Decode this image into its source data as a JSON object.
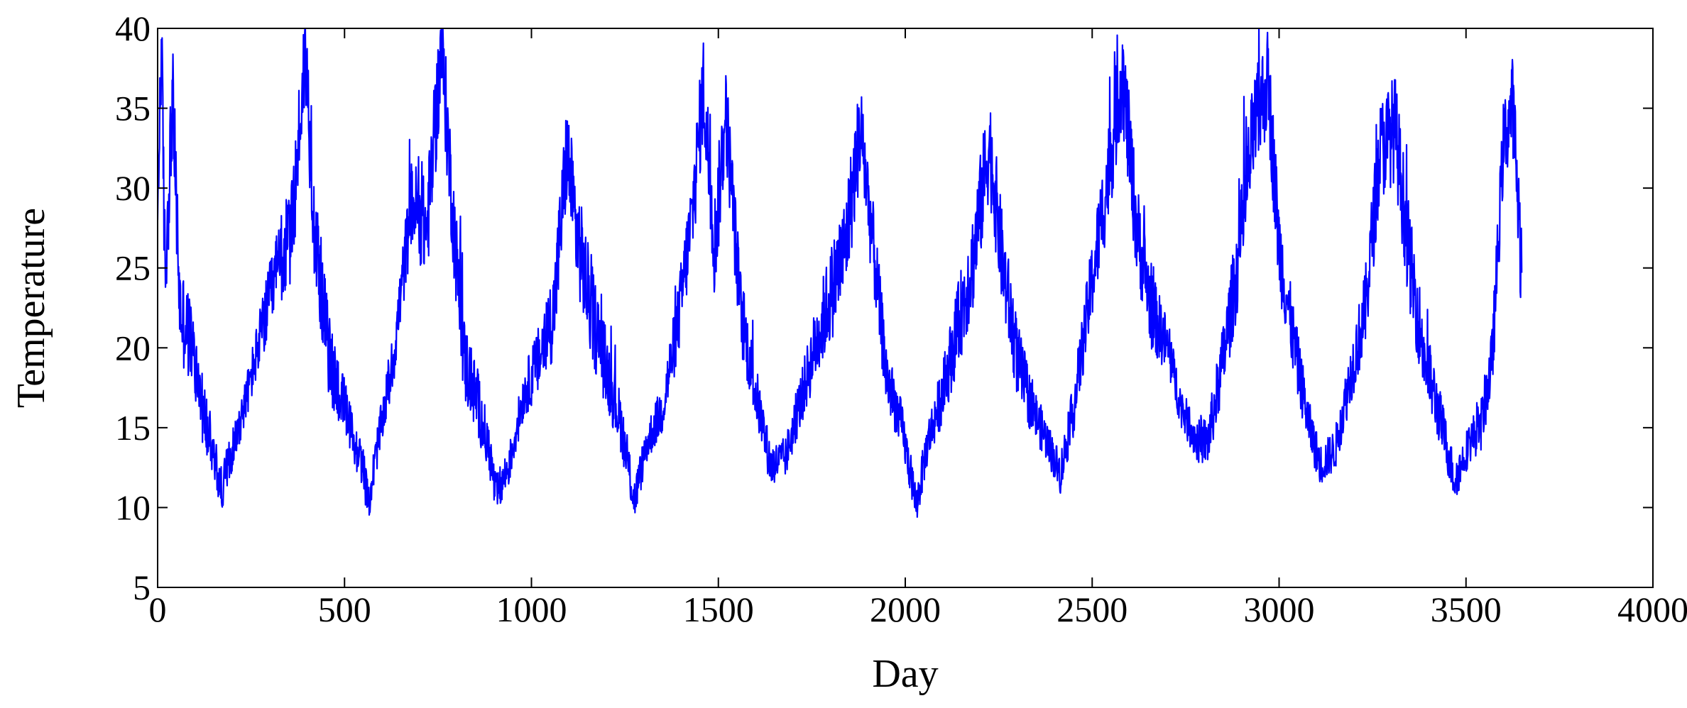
{
  "chart_data": {
    "type": "line",
    "title": "",
    "xlabel": "Day",
    "ylabel": "Temperature",
    "xlim": [
      0,
      4000
    ],
    "ylim": [
      5,
      40
    ],
    "xticks": [
      0,
      500,
      1000,
      1500,
      2000,
      2500,
      3000,
      3500,
      4000
    ],
    "yticks": [
      5,
      10,
      15,
      20,
      25,
      30,
      35,
      40
    ],
    "grid": false,
    "legend": "none",
    "series": [
      {
        "name": "Temperature",
        "color": "#0000ff",
        "n_points": 3650,
        "x_start": 0,
        "x_step": 1,
        "annual_period_days": 365,
        "first_value": 28.0,
        "last_value": 24.7,
        "approx_values_by_day": [
          [
            0,
            28.0
          ],
          [
            10,
            39.0
          ],
          [
            20,
            24.0
          ],
          [
            40,
            35.5
          ],
          [
            60,
            22.0
          ],
          [
            90,
            20.0
          ],
          [
            120,
            16.0
          ],
          [
            150,
            13.0
          ],
          [
            170,
            11.0
          ],
          [
            200,
            13.5
          ],
          [
            240,
            17.0
          ],
          [
            280,
            21.0
          ],
          [
            320,
            24.5
          ],
          [
            360,
            27.0
          ],
          [
            395,
            38.5
          ],
          [
            420,
            27.0
          ],
          [
            460,
            19.0
          ],
          [
            500,
            16.0
          ],
          [
            530,
            13.5
          ],
          [
            550,
            12.5
          ],
          [
            563,
            10.0
          ],
          [
            590,
            14.0
          ],
          [
            630,
            19.0
          ],
          [
            680,
            29.0
          ],
          [
            720,
            27.0
          ],
          [
            760,
            38.5
          ],
          [
            790,
            28.0
          ],
          [
            820,
            19.0
          ],
          [
            860,
            16.0
          ],
          [
            890,
            13.0
          ],
          [
            905,
            10.5
          ],
          [
            940,
            12.5
          ],
          [
            980,
            17.0
          ],
          [
            1020,
            19.0
          ],
          [
            1060,
            22.0
          ],
          [
            1095,
            32.0
          ],
          [
            1120,
            27.0
          ],
          [
            1160,
            22.0
          ],
          [
            1200,
            18.5
          ],
          [
            1240,
            15.0
          ],
          [
            1275,
            10.3
          ],
          [
            1310,
            14.0
          ],
          [
            1350,
            16.0
          ],
          [
            1390,
            21.0
          ],
          [
            1430,
            28.0
          ],
          [
            1460,
            36.0
          ],
          [
            1490,
            26.0
          ],
          [
            1520,
            34.5
          ],
          [
            1560,
            22.0
          ],
          [
            1600,
            17.0
          ],
          [
            1640,
            12.5
          ],
          [
            1680,
            13.0
          ],
          [
            1720,
            16.5
          ],
          [
            1760,
            20.0
          ],
          [
            1800,
            23.0
          ],
          [
            1840,
            26.0
          ],
          [
            1880,
            33.5
          ],
          [
            1910,
            27.0
          ],
          [
            1950,
            18.0
          ],
          [
            1990,
            15.0
          ],
          [
            2030,
            10.0
          ],
          [
            2060,
            14.0
          ],
          [
            2100,
            17.0
          ],
          [
            2140,
            21.0
          ],
          [
            2180,
            25.0
          ],
          [
            2225,
            32.5
          ],
          [
            2260,
            25.0
          ],
          [
            2300,
            19.0
          ],
          [
            2340,
            16.0
          ],
          [
            2380,
            14.0
          ],
          [
            2415,
            12.0
          ],
          [
            2450,
            16.0
          ],
          [
            2500,
            24.0
          ],
          [
            2540,
            30.0
          ],
          [
            2580,
            37.0
          ],
          [
            2620,
            27.0
          ],
          [
            2660,
            22.0
          ],
          [
            2700,
            20.0
          ],
          [
            2740,
            16.0
          ],
          [
            2780,
            14.0
          ],
          [
            2810,
            14.0
          ],
          [
            2850,
            19.0
          ],
          [
            2890,
            25.0
          ],
          [
            2930,
            33.0
          ],
          [
            2970,
            36.5
          ],
          [
            3000,
            26.0
          ],
          [
            3040,
            20.0
          ],
          [
            3080,
            15.0
          ],
          [
            3110,
            12.5
          ],
          [
            3150,
            13.5
          ],
          [
            3190,
            18.0
          ],
          [
            3230,
            22.0
          ],
          [
            3270,
            32.0
          ],
          [
            3310,
            33.5
          ],
          [
            3350,
            25.0
          ],
          [
            3390,
            19.0
          ],
          [
            3430,
            15.5
          ],
          [
            3470,
            11.5
          ],
          [
            3510,
            14.0
          ],
          [
            3540,
            15.0
          ],
          [
            3570,
            19.0
          ],
          [
            3600,
            32.5
          ],
          [
            3625,
            35.0
          ],
          [
            3649,
            24.7
          ]
        ]
      }
    ]
  }
}
